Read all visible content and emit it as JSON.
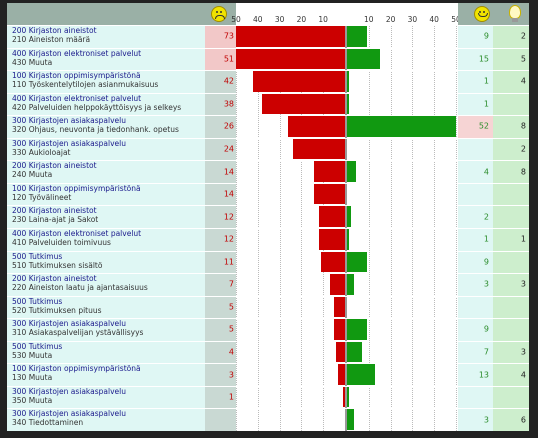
{
  "header": {
    "icon_neg": "sad-smiley-icon",
    "icon_pos": "happy-smiley-icon",
    "icon_sug": "light-bulb-icon"
  },
  "chart_data": {
    "type": "bar",
    "orientation": "horizontal-diverging",
    "neg_axis_ticks": [
      "50",
      "40",
      "30",
      "20",
      "10"
    ],
    "pos_axis_ticks": [
      "10",
      "20",
      "30",
      "40",
      "50"
    ],
    "colors": {
      "negative": "#cc0000",
      "positive": "#119911"
    },
    "rows": [
      {
        "l1": "200 Kirjaston aineistot",
        "l2": "210 Aineiston määrä",
        "neg": 73,
        "pos": 9,
        "sug": 2,
        "neg_text": "73",
        "pos_text": "9",
        "sug_text": "2"
      },
      {
        "l1": "400 Kirjaston elektroniset palvelut",
        "l2": "430 Muuta",
        "neg": 51,
        "pos": 15,
        "sug": 5,
        "neg_text": "51",
        "pos_text": "15",
        "sug_text": "5"
      },
      {
        "l1": "100 Kirjaston oppimisympäristönä",
        "l2": "110 Työskentelytilojen asianmukaisuus",
        "neg": 42,
        "pos": 1,
        "sug": 4,
        "neg_text": "42",
        "pos_text": "1",
        "sug_text": "4"
      },
      {
        "l1": "400 Kirjaston elektroniset palvelut",
        "l2": "420 Palveluiden helppokäyttöisyys ja selkeys",
        "neg": 38,
        "pos": 1,
        "sug": null,
        "neg_text": "38",
        "pos_text": "1",
        "sug_text": ""
      },
      {
        "l1": "300 Kirjastojen asiakaspalvelu",
        "l2": "320 Ohjaus, neuvonta ja tiedonhank. opetus",
        "neg": 26,
        "pos": 52,
        "sug": 8,
        "neg_text": "26",
        "pos_text": "52",
        "sug_text": "8"
      },
      {
        "l1": "300 Kirjastojen asiakaspalvelu",
        "l2": "330 Aukioloajat",
        "neg": 24,
        "pos": 0,
        "sug": 2,
        "neg_text": "24",
        "pos_text": "",
        "sug_text": "2"
      },
      {
        "l1": "200 Kirjaston aineistot",
        "l2": "240 Muuta",
        "neg": 14,
        "pos": 4,
        "sug": 8,
        "neg_text": "14",
        "pos_text": "4",
        "sug_text": "8"
      },
      {
        "l1": "100 Kirjaston oppimisympäristönä",
        "l2": "120 Työvälineet",
        "neg": 14,
        "pos": 0,
        "sug": null,
        "neg_text": "14",
        "pos_text": "",
        "sug_text": ""
      },
      {
        "l1": "200 Kirjaston aineistot",
        "l2": "230 Laina-ajat ja Sakot",
        "neg": 12,
        "pos": 2,
        "sug": null,
        "neg_text": "12",
        "pos_text": "2",
        "sug_text": ""
      },
      {
        "l1": "400 Kirjaston elektroniset palvelut",
        "l2": "410 Palveluiden toimivuus",
        "neg": 12,
        "pos": 1,
        "sug": 1,
        "neg_text": "12",
        "pos_text": "1",
        "sug_text": "1"
      },
      {
        "l1": "500 Tutkimus",
        "l2": "510 Tutkimuksen sisältö",
        "neg": 11,
        "pos": 9,
        "sug": null,
        "neg_text": "11",
        "pos_text": "9",
        "sug_text": ""
      },
      {
        "l1": "200 Kirjaston aineistot",
        "l2": "220 Aineiston laatu ja ajantasaisuus",
        "neg": 7,
        "pos": 3,
        "sug": 3,
        "neg_text": "7",
        "pos_text": "3",
        "sug_text": "3"
      },
      {
        "l1": "500 Tutkimus",
        "l2": "520 Tutkimuksen pituus",
        "neg": 5,
        "pos": 0,
        "sug": null,
        "neg_text": "5",
        "pos_text": "",
        "sug_text": ""
      },
      {
        "l1": "300 Kirjastojen asiakaspalvelu",
        "l2": "310 Asiakaspalvelijan ystävällisyys",
        "neg": 5,
        "pos": 9,
        "sug": null,
        "neg_text": "5",
        "pos_text": "9",
        "sug_text": ""
      },
      {
        "l1": "500 Tutkimus",
        "l2": "530 Muuta",
        "neg": 4,
        "pos": 7,
        "sug": 3,
        "neg_text": "4",
        "pos_text": "7",
        "sug_text": "3"
      },
      {
        "l1": "100 Kirjaston oppimisympäristönä",
        "l2": "130 Muuta",
        "neg": 3,
        "pos": 13,
        "sug": 4,
        "neg_text": "3",
        "pos_text": "13",
        "sug_text": "4"
      },
      {
        "l1": "300 Kirjastojen asiakaspalvelu",
        "l2": "350 Muuta",
        "neg": 1,
        "pos": 1,
        "sug": null,
        "neg_text": "1",
        "pos_text": "",
        "sug_text": ""
      },
      {
        "l1": "300 Kirjastojen asiakaspalvelu",
        "l2": "340 Tiedottaminen",
        "neg": 0,
        "pos": 3,
        "sug": 6,
        "neg_text": "",
        "pos_text": "3",
        "sug_text": "6"
      }
    ]
  }
}
